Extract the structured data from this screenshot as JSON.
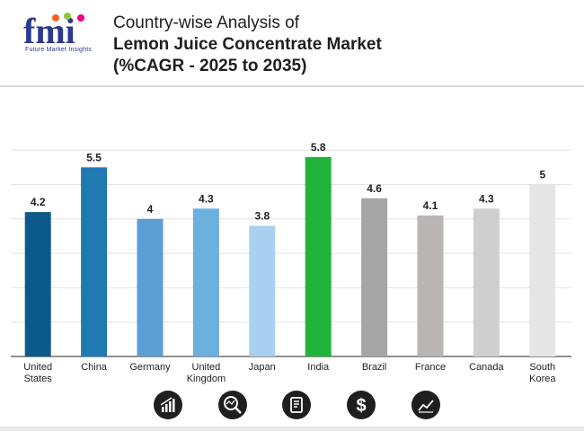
{
  "brand": {
    "logo_letters": "fmi",
    "tagline": "Future Market Insights"
  },
  "header": {
    "title_line1": "Country-wise Analysis of",
    "title_line2": "Lemon Juice Concentrate Market",
    "title_line3": "(%CAGR - 2025 to 2035)"
  },
  "chart_data": {
    "type": "bar",
    "title": "Country-wise Analysis of Lemon Juice Concentrate Market (%CAGR - 2025 to 2035)",
    "categories": [
      [
        "United",
        "States"
      ],
      [
        "China"
      ],
      [
        "Germany"
      ],
      [
        "United",
        "Kingdom"
      ],
      [
        "Japan"
      ],
      [
        "India"
      ],
      [
        "Brazil"
      ],
      [
        "France"
      ],
      [
        "Canada"
      ],
      [
        "South",
        "Korea"
      ]
    ],
    "values": [
      4.2,
      5.5,
      4,
      4.3,
      3.8,
      5.8,
      4.6,
      4.1,
      4.3,
      5
    ],
    "value_labels": [
      "4.2",
      "5.5",
      "4",
      "4.3",
      "3.8",
      "5.8",
      "4.6",
      "4.1",
      "4.3",
      "5"
    ],
    "colors": [
      "#0b5a8a",
      "#2079b3",
      "#5b9fd4",
      "#6cb0e0",
      "#a9d1ef",
      "#22b33a",
      "#a5a5a5",
      "#b9b5b5",
      "#cfcfcf",
      "#e6e6e6"
    ],
    "ylim": [
      0,
      6
    ],
    "grid": true,
    "xlabel": "",
    "ylabel": ""
  },
  "footer_icons": [
    "growth-chart-icon",
    "magnifier-chart-icon",
    "document-icon",
    "dollar-icon",
    "trend-line-icon"
  ]
}
